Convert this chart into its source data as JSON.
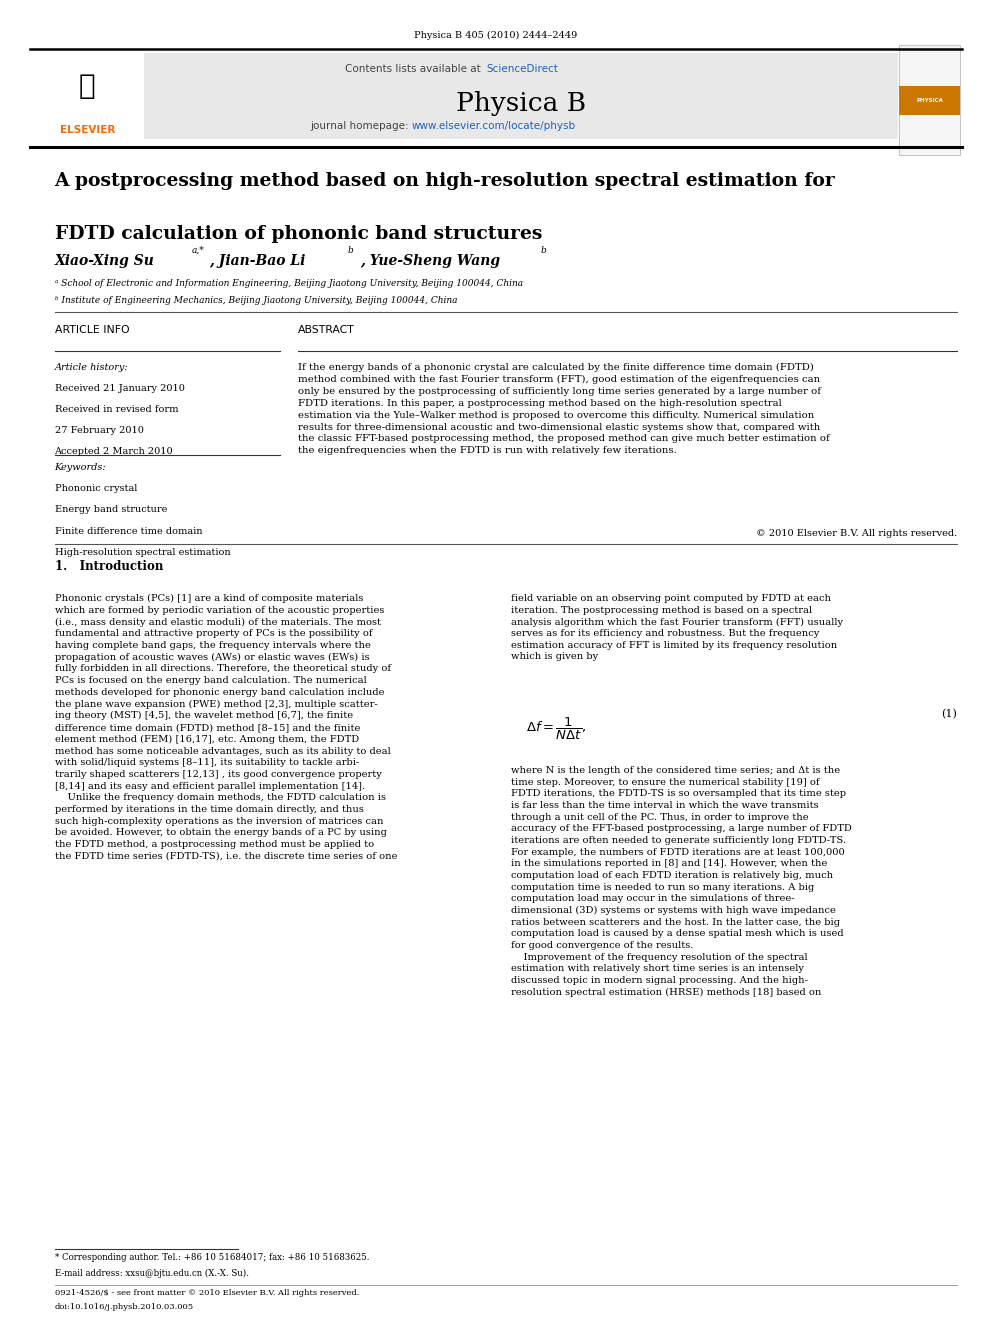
{
  "page_width": 9.92,
  "page_height": 13.23,
  "bg_color": "#ffffff",
  "journal_ref": "Physica B 405 (2010) 2444–2449",
  "header_bg": "#e8e8e8",
  "sciencedirect_color": "#2060c0",
  "journal_name": "Physica B",
  "journal_url": "www.elsevier.com/locate/physb",
  "journal_url_color": "#2060c0",
  "elsevier_color": "#ff6600",
  "title_line1": "A postprocessing method based on high-resolution spectral estimation for",
  "title_line2": "FDTD calculation of phononic band structures",
  "affil_a": "ᵃ School of Electronic and Information Engineering, Beijing Jiaotong University, Beijing 100044, China",
  "affil_b": "ᵇ Institute of Engineering Mechanics, Beijing Jiaotong University, Beijing 100044, China",
  "section_article_info": "ARTICLE INFO",
  "section_abstract": "ABSTRACT",
  "article_history_label": "Article history:",
  "received1": "Received 21 January 2010",
  "received2": "Received in revised form",
  "received3": "27 February 2010",
  "accepted": "Accepted 2 March 2010",
  "keywords_label": "Keywords:",
  "kw1": "Phononic crystal",
  "kw2": "Energy band structure",
  "kw3": "Finite difference time domain",
  "kw4": "High-resolution spectral estimation",
  "abstract_text": "If the energy bands of a phononic crystal are calculated by the finite difference time domain (FDTD)\nmethod combined with the fast Fourier transform (FFT), good estimation of the eigenfrequencies can\nonly be ensured by the postprocessing of sufficiently long time series generated by a large number of\nFDTD iterations. In this paper, a postprocessing method based on the high-resolution spectral\nestimation via the Yule–Walker method is proposed to overcome this difficulty. Numerical simulation\nresults for three-dimensional acoustic and two-dimensional elastic systems show that, compared with\nthe classic FFT-based postprocessing method, the proposed method can give much better estimation of\nthe eigenfrequencies when the FDTD is run with relatively few iterations.",
  "copyright": "© 2010 Elsevier B.V. All rights reserved.",
  "intro_header": "1.   Introduction",
  "intro_col1": "Phononic crystals (PCs) [1] are a kind of composite materials\nwhich are formed by periodic variation of the acoustic properties\n(i.e., mass density and elastic moduli) of the materials. The most\nfundamental and attractive property of PCs is the possibility of\nhaving complete band gaps, the frequency intervals where the\npropagation of acoustic waves (AWs) or elastic waves (EWs) is\nfully forbidden in all directions. Therefore, the theoretical study of\nPCs is focused on the energy band calculation. The numerical\nmethods developed for phononic energy band calculation include\nthe plane wave expansion (PWE) method [2,3], multiple scatter-\ning theory (MST) [4,5], the wavelet method [6,7], the finite\ndifference time domain (FDTD) method [8–15] and the finite\nelement method (FEM) [16,17], etc. Among them, the FDTD\nmethod has some noticeable advantages, such as its ability to deal\nwith solid/liquid systems [8–11], its suitability to tackle arbi-\ntrarily shaped scatterers [12,13] , its good convergence property\n[8,14] and its easy and efficient parallel implementation [14].\n    Unlike the frequency domain methods, the FDTD calculation is\nperformed by iterations in the time domain directly, and thus\nsuch high-complexity operations as the inversion of matrices can\nbe avoided. However, to obtain the energy bands of a PC by using\nthe FDTD method, a postprocessing method must be applied to\nthe FDTD time series (FDTD-TS), i.e. the discrete time series of one",
  "intro_col2": "field variable on an observing point computed by FDTD at each\niteration. The postprocessing method is based on a spectral\nanalysis algorithm which the fast Fourier transform (FFT) usually\nserves as for its efficiency and robustness. But the frequency\nestimation accuracy of FFT is limited by its frequency resolution\nwhich is given by",
  "formula_num": "(1)",
  "formula_desc": "where N is the length of the considered time series; and Δt is the\ntime step. Moreover, to ensure the numerical stability [19] of\nFDTD iterations, the FDTD-TS is so oversampled that its time step\nis far less than the time interval in which the wave transmits\nthrough a unit cell of the PC. Thus, in order to improve the\naccuracy of the FFT-based postprocessing, a large number of FDTD\niterations are often needed to generate sufficiently long FDTD-TS.\nFor example, the numbers of FDTD iterations are at least 100,000\nin the simulations reported in [8] and [14]. However, when the\ncomputation load of each FDTD iteration is relatively big, much\ncomputation time is needed to run so many iterations. A big\ncomputation load may occur in the simulations of three-\ndimensional (3D) systems or systems with high wave impedance\nratios between scatterers and the host. In the latter case, the big\ncomputation load is caused by a dense spatial mesh which is used\nfor good convergence of the results.\n    Improvement of the frequency resolution of the spectral\nestimation with relatively short time series is an intensely\ndiscussed topic in modern signal processing. And the high-\nresolution spectral estimation (HRSE) methods [18] based on",
  "footnote_star": "* Corresponding author. Tel.: +86 10 51684017; fax: +86 10 51683625.",
  "footnote_email": "E-mail address: xxsu@bjtu.edu.cn (X.-X. Su).",
  "bottom_note1": "0921-4526/$ - see front matter © 2010 Elsevier B.V. All rights reserved.",
  "bottom_note2": "doi:10.1016/j.physb.2010.03.005"
}
